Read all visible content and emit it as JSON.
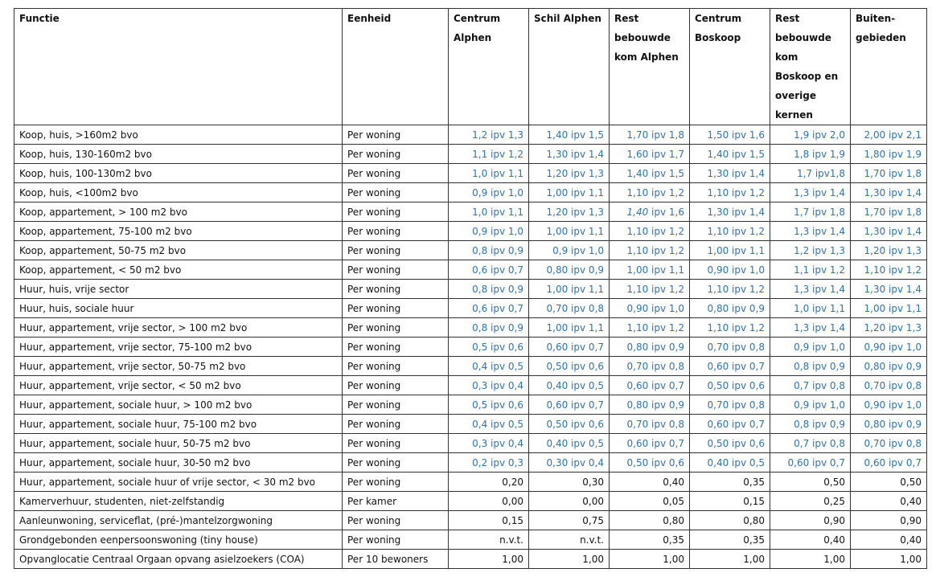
{
  "table": {
    "headers": [
      "Functie",
      "Eenheid",
      "Centrum Alphen",
      "Schil Alphen",
      "Rest bebouwde kom Alphen",
      "Centrum Boskoop",
      "Rest bebouwde kom Boskoop en overige kernen",
      "Buiten-gebieden"
    ],
    "value_color_ipv": "#2a73b8",
    "rows": [
      {
        "functie": "Koop, huis, >160m2 bvo",
        "eenheid": "Per woning",
        "values": [
          "1,2 ipv 1,3",
          "1,40 ipv 1,5",
          "1,70 ipv 1,8",
          "1,50 ipv 1,6",
          "1,9 ipv 2,0",
          "2,00 ipv 2,1"
        ],
        "blue": true
      },
      {
        "functie": "Koop, huis, 130-160m2 bvo",
        "eenheid": "Per woning",
        "values": [
          "1,1 ipv 1,2",
          "1,30 ipv 1,4",
          "1,60 ipv 1,7",
          "1,40 ipv 1,5",
          "1,8 ipv 1,9",
          "1,80 ipv 1,9"
        ],
        "blue": true
      },
      {
        "functie": "Koop, huis, 100-130m2 bvo",
        "eenheid": "Per woning",
        "values": [
          "1,0 ipv 1,1",
          "1,20 ipv 1,3",
          "1,40 ipv 1,5",
          "1,30 ipv 1,4",
          "1,7 ipv1,8",
          "1,70 ipv 1,8"
        ],
        "blue": true
      },
      {
        "functie": "Koop, huis, <100m2 bvo",
        "eenheid": "Per woning",
        "values": [
          "0,9 ipv 1,0",
          "1,00 ipv 1,1",
          "1,10 ipv 1,2",
          "1,10 ipv 1,2",
          "1,3 ipv 1,4",
          "1,30 ipv 1,4"
        ],
        "blue": true
      },
      {
        "functie": "Koop, appartement, > 100 m2 bvo",
        "eenheid": "Per woning",
        "values": [
          "1,0 ipv 1,1",
          "1,20 ipv 1,3",
          {
            "italic": "1,40",
            "rest": " ipv 1,6"
          },
          "1,30 ipv 1,4",
          "1,7 ipv 1,8",
          "1,70 ipv 1,8"
        ],
        "blue": true
      },
      {
        "functie": "Koop, appartement, 75-100 m2 bvo",
        "eenheid": "Per woning",
        "values": [
          "0,9 ipv 1,0",
          "1,00 ipv 1,1",
          "1,10 ipv 1,2",
          "1,10 ipv 1,2",
          "1,3 ipv 1,4",
          "1,30 ipv 1,4"
        ],
        "blue": true
      },
      {
        "functie": "Koop, appartement, 50-75 m2 bvo",
        "eenheid": "Per woning",
        "values": [
          "0,8 ipv 0,9",
          "0,9 ipv 1,0",
          "1,10 ipv 1,2",
          "1,00 ipv 1,1",
          "1,2 ipv 1,3",
          "1,20 ipv 1,3"
        ],
        "blue": true
      },
      {
        "functie": "Koop, appartement, < 50 m2 bvo",
        "eenheid": "Per woning",
        "values": [
          "0,6 ipv 0,7",
          "0,80 ipv 0,9",
          "1,00 ipv 1,1",
          "0,90 ipv 1,0",
          "1,1 ipv 1,2",
          "1,10 ipv 1,2"
        ],
        "blue": true
      },
      {
        "functie": "Huur, huis, vrije sector",
        "eenheid": "Per woning",
        "values": [
          "0,8 ipv 0,9",
          "1,00 ipv 1,1",
          "1,10 ipv 1,2",
          "1,10 ipv 1,2",
          "1,3 ipv 1,4",
          "1,30 ipv 1,4"
        ],
        "blue": true
      },
      {
        "functie": "Huur, huis, sociale huur",
        "eenheid": "Per woning",
        "values": [
          "0,6 ipv 0,7",
          "0,70 ipv 0,8",
          "0,90 ipv 1,0",
          "0,80 ipv 0,9",
          "1,0 ipv 1,1",
          "1,00 ipv 1,1"
        ],
        "blue": true
      },
      {
        "functie": "Huur, appartement, vrije sector, > 100 m2 bvo",
        "eenheid": "Per woning",
        "values": [
          "0,8 ipv 0,9",
          "1,00 ipv 1,1",
          "1,10 ipv 1,2",
          "1,10 ipv 1,2",
          "1,3 ipv 1,4",
          "1,20 ipv 1,3"
        ],
        "blue": true
      },
      {
        "functie": "Huur, appartement, vrije sector, 75-100 m2 bvo",
        "eenheid": "Per woning",
        "values": [
          "0,5 ipv 0,6",
          "0,60 ipv 0,7",
          "0,80 ipv 0,9",
          "0,70 ipv 0,8",
          "0,9 ipv 1,0",
          "0,90 ipv 1,0"
        ],
        "blue": true
      },
      {
        "functie": "Huur, appartement, vrije sector, 50-75 m2 bvo",
        "eenheid": "Per woning",
        "values": [
          "0,4 ipv 0,5",
          "0,50 ipv 0,6",
          "0,70 ipv 0,8",
          "0,60 ipv 0,7",
          "0,8 ipv 0,9",
          "0,80 ipv 0,9"
        ],
        "blue": true
      },
      {
        "functie": "Huur, appartement, vrije sector, < 50 m2 bvo",
        "eenheid": "Per woning",
        "values": [
          "0,3 ipv 0,4",
          "0,40 ipv 0,5",
          "0,60 ipv 0,7",
          "0,50 ipv 0,6",
          "0,7 ipv 0,8",
          "0,70 ipv 0,8"
        ],
        "blue": true
      },
      {
        "functie": "Huur, appartement, sociale huur, > 100 m2 bvo",
        "eenheid": "Per woning",
        "values": [
          "0,5 ipv 0,6",
          "0,60 ipv 0,7",
          "0,80 ipv 0,9",
          "0,70 ipv 0,8",
          "0,9 ipv 1,0",
          "0,90 ipv 1,0"
        ],
        "blue": true
      },
      {
        "functie": "Huur, appartement, sociale huur, 75-100 m2 bvo",
        "eenheid": "Per woning",
        "values": [
          "0,4 ipv 0,5",
          "0,50 ipv 0,6",
          "0,70 ipv 0,8",
          "0,60 ipv 0,7",
          "0,8 ipv 0,9",
          "0,80 ipv 0,9"
        ],
        "blue": true
      },
      {
        "functie": "Huur, appartement, sociale huur, 50-75 m2 bvo",
        "eenheid": "Per woning",
        "values": [
          "0,3 ipv 0,4",
          "0,40 ipv 0,5",
          "0,60 ipv 0,7",
          "0,50 ipv 0,6",
          "0,7 ipv 0,8",
          "0,70 ipv 0,8"
        ],
        "blue": true
      },
      {
        "functie": "Huur, appartement, sociale huur, 30-50 m2 bvo",
        "eenheid": "Per woning",
        "values": [
          "0,2 ipv 0,3",
          "0,30 ipv 0,4",
          "0,50 ipv 0,6",
          "0,40 ipv 0,5",
          "0,60 ipv 0,7",
          "0,60 ipv 0,7"
        ],
        "blue": true
      },
      {
        "functie": "Huur, appartement, sociale huur of vrije sector, < 30 m2 bvo",
        "eenheid": "Per woning",
        "values": [
          "0,20",
          "0,30",
          "0,40",
          "0,35",
          "0,50",
          "0,50"
        ],
        "blue": false
      },
      {
        "functie": "Kamerverhuur, studenten, niet-zelfstandig",
        "eenheid": "Per kamer",
        "values": [
          "0,00",
          "0,00",
          "0,05",
          "0,15",
          "0,25",
          "0,40"
        ],
        "blue": false
      },
      {
        "functie": "Aanleunwoning, serviceflat, (pré-)mantelzorgwoning",
        "eenheid": "Per woning",
        "values": [
          "0,15",
          "0,75",
          "0,80",
          "0,80",
          "0,90",
          "0,90"
        ],
        "blue": false
      },
      {
        "functie": "Grondgebonden eenpersoonswoning (tiny house)",
        "eenheid": "Per woning",
        "values": [
          "n.v.t.",
          "n.v.t.",
          "0,35",
          "0,35",
          "0,40",
          "0,40"
        ],
        "blue": false
      },
      {
        "functie": "Opvanglocatie Centraal Orgaan opvang asielzoekers (COA)",
        "eenheid": "Per 10 bewoners",
        "values": [
          "1,00",
          "1,00",
          "1,00",
          "1,00",
          "1,00",
          "1,00"
        ],
        "blue": false
      }
    ]
  }
}
